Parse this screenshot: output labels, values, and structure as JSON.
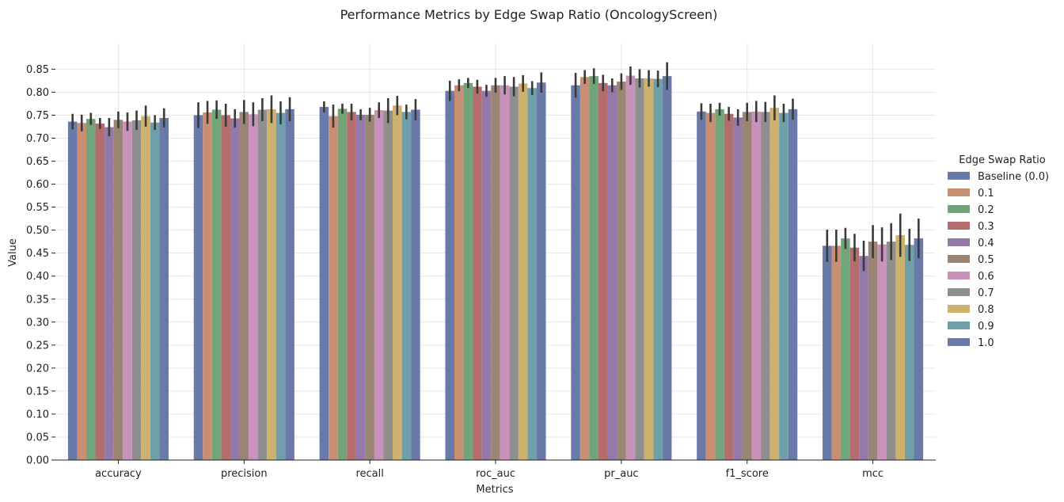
{
  "chart_data": {
    "type": "bar",
    "title": "Performance Metrics by Edge Swap Ratio (OncologyScreen)",
    "xlabel": "Metrics",
    "ylabel": "Value",
    "ylim": [
      0,
      0.9
    ],
    "yticks": [
      "0.00",
      "0.05",
      "0.10",
      "0.15",
      "0.20",
      "0.25",
      "0.30",
      "0.35",
      "0.40",
      "0.45",
      "0.50",
      "0.55",
      "0.60",
      "0.65",
      "0.70",
      "0.75",
      "0.80",
      "0.85"
    ],
    "grid": true,
    "legend_title": "Edge Swap Ratio",
    "legend_position": "right",
    "categories": [
      "accuracy",
      "precision",
      "recall",
      "roc_auc",
      "pr_auc",
      "f1_score",
      "mcc"
    ],
    "series": [
      {
        "name": "Baseline (0.0)",
        "color": "#6a7aa8",
        "values": [
          0.736,
          0.75,
          0.768,
          0.803,
          0.815,
          0.758,
          0.466
        ],
        "errors": [
          0.017,
          0.028,
          0.012,
          0.022,
          0.027,
          0.018,
          0.035
        ]
      },
      {
        "name": "0.1",
        "color": "#c98f74",
        "values": [
          0.733,
          0.756,
          0.748,
          0.815,
          0.833,
          0.755,
          0.466
        ],
        "errors": [
          0.018,
          0.025,
          0.025,
          0.013,
          0.015,
          0.02,
          0.035
        ]
      },
      {
        "name": "0.2",
        "color": "#72a47a",
        "values": [
          0.742,
          0.762,
          0.764,
          0.82,
          0.835,
          0.763,
          0.482
        ],
        "errors": [
          0.013,
          0.02,
          0.011,
          0.011,
          0.017,
          0.014,
          0.023
        ]
      },
      {
        "name": "0.3",
        "color": "#b46c6c",
        "values": [
          0.732,
          0.75,
          0.757,
          0.812,
          0.82,
          0.753,
          0.462
        ],
        "errors": [
          0.012,
          0.025,
          0.018,
          0.015,
          0.018,
          0.015,
          0.03
        ]
      },
      {
        "name": "0.4",
        "color": "#9279a8",
        "values": [
          0.724,
          0.743,
          0.751,
          0.803,
          0.815,
          0.745,
          0.444
        ],
        "errors": [
          0.02,
          0.02,
          0.012,
          0.013,
          0.015,
          0.018,
          0.033
        ]
      },
      {
        "name": "0.5",
        "color": "#9a8474",
        "values": [
          0.74,
          0.757,
          0.751,
          0.815,
          0.823,
          0.757,
          0.475
        ],
        "errors": [
          0.018,
          0.026,
          0.015,
          0.016,
          0.018,
          0.02,
          0.036
        ]
      },
      {
        "name": "0.6",
        "color": "#c992bb",
        "values": [
          0.736,
          0.752,
          0.761,
          0.815,
          0.836,
          0.758,
          0.469
        ],
        "errors": [
          0.02,
          0.026,
          0.017,
          0.02,
          0.02,
          0.023,
          0.037
        ]
      },
      {
        "name": "0.7",
        "color": "#8f8f8f",
        "values": [
          0.739,
          0.762,
          0.76,
          0.812,
          0.83,
          0.757,
          0.475
        ],
        "errors": [
          0.021,
          0.025,
          0.027,
          0.021,
          0.02,
          0.022,
          0.04
        ]
      },
      {
        "name": "0.8",
        "color": "#cfb16e",
        "values": [
          0.748,
          0.763,
          0.771,
          0.819,
          0.83,
          0.766,
          0.489
        ],
        "errors": [
          0.023,
          0.03,
          0.021,
          0.018,
          0.018,
          0.027,
          0.047
        ]
      },
      {
        "name": "0.9",
        "color": "#6f9fa8",
        "values": [
          0.734,
          0.755,
          0.757,
          0.809,
          0.829,
          0.755,
          0.468
        ],
        "errors": [
          0.016,
          0.025,
          0.016,
          0.015,
          0.018,
          0.02,
          0.035
        ]
      },
      {
        "name": "1.0",
        "color": "#6a7aa8",
        "values": [
          0.744,
          0.763,
          0.762,
          0.821,
          0.835,
          0.763,
          0.482
        ],
        "errors": [
          0.021,
          0.026,
          0.023,
          0.022,
          0.03,
          0.023,
          0.043
        ]
      }
    ]
  }
}
